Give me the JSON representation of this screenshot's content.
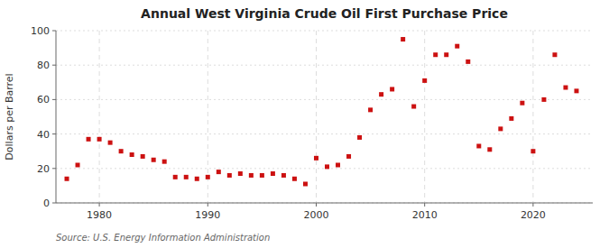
{
  "chart_data": {
    "type": "scatter",
    "title": "Annual West Virginia Crude Oil First Purchase Price",
    "ylabel": "Dollars per Barrel",
    "source": "Source: U.S. Energy Information Administration",
    "x": [
      1977,
      1978,
      1979,
      1980,
      1981,
      1982,
      1983,
      1984,
      1985,
      1986,
      1987,
      1988,
      1989,
      1990,
      1991,
      1992,
      1993,
      1994,
      1995,
      1996,
      1997,
      1998,
      1999,
      2000,
      2001,
      2002,
      2003,
      2004,
      2005,
      2006,
      2007,
      2008,
      2009,
      2010,
      2011,
      2012,
      2013,
      2014,
      2015,
      2016,
      2017,
      2018,
      2019,
      2020,
      2021,
      2022,
      2023,
      2024
    ],
    "values": [
      14,
      22,
      37,
      37,
      35,
      30,
      28,
      27,
      25,
      24,
      15,
      15,
      14,
      15,
      18,
      16,
      17,
      16,
      16,
      17,
      16,
      14,
      11,
      26,
      21,
      22,
      27,
      38,
      54,
      63,
      66,
      95,
      56,
      71,
      86,
      86,
      91,
      82,
      33,
      31,
      43,
      49,
      58,
      30,
      60,
      86,
      67,
      65
    ],
    "color": "#cc1111",
    "marker": "square",
    "xlim": [
      1976,
      2025.5
    ],
    "ylim": [
      0,
      100
    ],
    "xticks": [
      1980,
      1990,
      2000,
      2010,
      2020
    ],
    "yticks": [
      0,
      20,
      40,
      60,
      80,
      100
    ],
    "grid": true
  }
}
